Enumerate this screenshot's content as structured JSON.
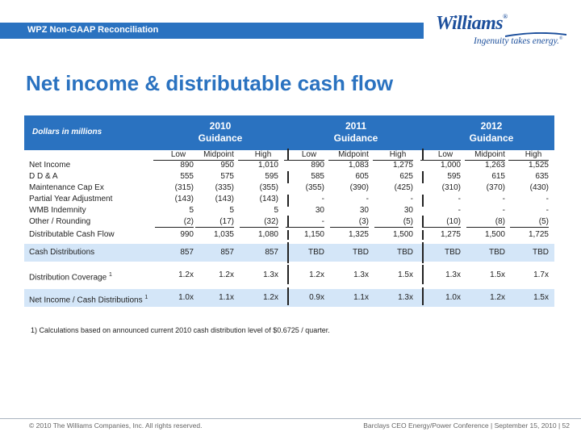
{
  "header": {
    "section_label": "WPZ Non-GAAP Reconciliation"
  },
  "logo": {
    "name": "Williams",
    "reg": "®",
    "tagline": "Ingenuity takes energy.",
    "tm": "®"
  },
  "title": "Net income & distributable cash flow",
  "table": {
    "units_label": "Dollars in millions",
    "groups": [
      {
        "year": "2010",
        "label": "Guidance"
      },
      {
        "year": "2011",
        "label": "Guidance"
      },
      {
        "year": "2012",
        "label": "Guidance"
      }
    ],
    "subheaders": [
      "Low",
      "Midpoint",
      "High",
      "Low",
      "Midpoint",
      "High",
      "Low",
      "Midpoint",
      "High"
    ],
    "rows": [
      {
        "label": "Net Income",
        "sup": "",
        "values": [
          "890",
          "950",
          "1,010",
          "890",
          "1,083",
          "1,275",
          "1,000",
          "1,263",
          "1,525"
        ]
      },
      {
        "label": "D D & A",
        "sup": "",
        "values": [
          "555",
          "575",
          "595",
          "585",
          "605",
          "625",
          "595",
          "615",
          "635"
        ]
      },
      {
        "label": "Maintenance Cap Ex",
        "sup": "",
        "values": [
          "(315)",
          "(335)",
          "(355)",
          "(355)",
          "(390)",
          "(425)",
          "(310)",
          "(370)",
          "(430)"
        ]
      },
      {
        "label": "Partial Year Adjustment",
        "sup": "",
        "values": [
          "(143)",
          "(143)",
          "(143)",
          "-",
          "-",
          "-",
          "-",
          "-",
          "-"
        ]
      },
      {
        "label": "WMB Indemnity",
        "sup": "",
        "values": [
          "5",
          "5",
          "5",
          "30",
          "30",
          "30",
          "-",
          "-",
          "-"
        ]
      },
      {
        "label": "Other / Rounding",
        "sup": "",
        "values": [
          "(2)",
          "(17)",
          "(32)",
          "-",
          "(3)",
          "(5)",
          "(10)",
          "(8)",
          "(5)"
        ]
      },
      {
        "label": "Distributable Cash Flow",
        "sup": "",
        "values": [
          "990",
          "1,035",
          "1,080",
          "1,150",
          "1,325",
          "1,500",
          "1,275",
          "1,500",
          "1,725"
        ]
      },
      {
        "label": "Cash Distributions",
        "sup": "",
        "values": [
          "857",
          "857",
          "857",
          "TBD",
          "TBD",
          "TBD",
          "TBD",
          "TBD",
          "TBD"
        ]
      },
      {
        "label": "Distribution Coverage",
        "sup": "1",
        "values": [
          "1.2x",
          "1.2x",
          "1.3x",
          "1.2x",
          "1.3x",
          "1.5x",
          "1.3x",
          "1.5x",
          "1.7x"
        ]
      },
      {
        "label": "Net Income / Cash Distributions",
        "sup": "1",
        "values": [
          "1.0x",
          "1.1x",
          "1.2x",
          "0.9x",
          "1.1x",
          "1.3x",
          "1.0x",
          "1.2x",
          "1.5x"
        ]
      }
    ]
  },
  "footnote": "1)  Calculations based on announced current 2010 cash distribution level of $0.6725 / quarter.",
  "footer": {
    "copyright": "© 2010 The Williams Companies, Inc. All rights reserved.",
    "conference": "Barclays CEO Energy/Power Conference  | September 15, 2010  |  52"
  },
  "colors": {
    "brand_blue": "#2a72c0",
    "band_blue": "#d4e6f8",
    "logo_blue": "#1c4f9c"
  }
}
